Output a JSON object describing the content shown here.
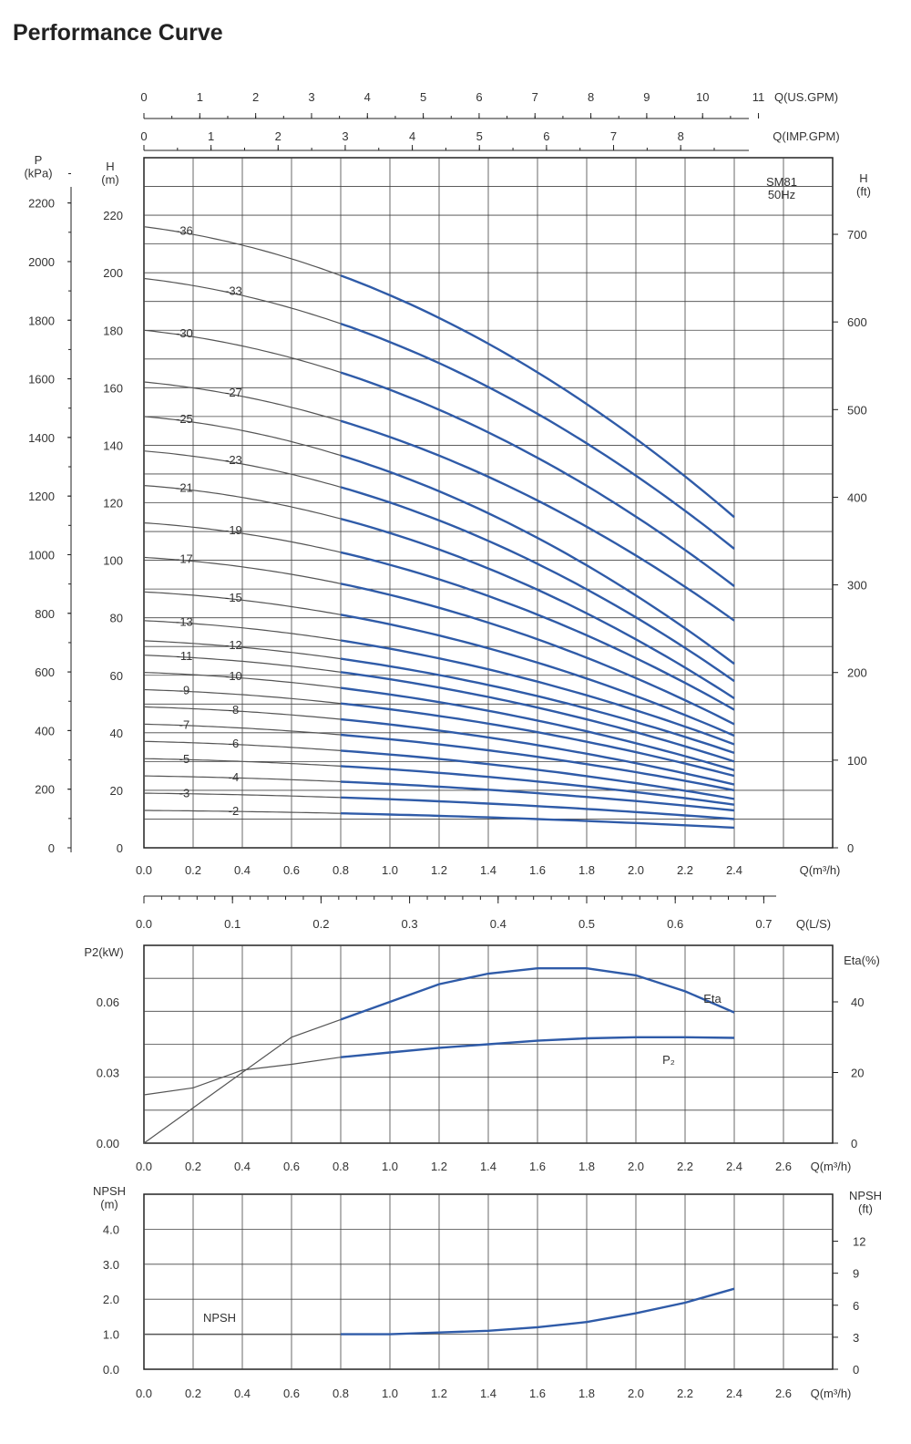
{
  "title": "Performance Curve",
  "chart_data": [
    {
      "type": "line",
      "name": "head",
      "model": "SM81",
      "frequency": "50Hz",
      "axes": {
        "x_m3h": {
          "label": "Q(m³/h)",
          "ticks": [
            "0.0",
            "0.2",
            "0.4",
            "0.6",
            "0.8",
            "1.0",
            "1.2",
            "1.4",
            "1.6",
            "1.8",
            "2.0",
            "2.2",
            "2.4"
          ],
          "range": [
            0,
            2.8
          ]
        },
        "x_usgpm": {
          "label": "Q(US.GPM)",
          "ticks": [
            "0",
            "1",
            "2",
            "3",
            "4",
            "5",
            "6",
            "7",
            "8",
            "9",
            "10",
            "11"
          ]
        },
        "x_impgpm": {
          "label": "Q(IMP.GPM)",
          "ticks": [
            "0",
            "1",
            "2",
            "3",
            "4",
            "5",
            "6",
            "7",
            "8"
          ]
        },
        "x_ls": {
          "label": "Q(L/S)",
          "ticks": [
            "0.0",
            "0.1",
            "0.2",
            "0.3",
            "0.4",
            "0.5",
            "0.6",
            "0.7"
          ]
        },
        "y_m": {
          "label": "H\n(m)",
          "ticks": [
            "0",
            "20",
            "40",
            "60",
            "80",
            "100",
            "120",
            "140",
            "160",
            "180",
            "200",
            "220"
          ],
          "range": [
            0,
            240
          ]
        },
        "y_kpa": {
          "label": "P\n(kPa)",
          "ticks": [
            "0",
            "200",
            "400",
            "600",
            "800",
            "1000",
            "1200",
            "1400",
            "1600",
            "1800",
            "2000",
            "2200"
          ]
        },
        "y_ft": {
          "label": "H\n(ft)",
          "ticks": [
            "0",
            "100",
            "200",
            "300",
            "400",
            "500",
            "600",
            "700"
          ]
        }
      },
      "operating_range_m3h": [
        0.8,
        2.4
      ],
      "series": [
        {
          "name": "-36",
          "h0": 216,
          "h24": 115
        },
        {
          "name": "-33",
          "h0": 198,
          "h24": 104
        },
        {
          "name": "-30",
          "h0": 180,
          "h24": 91
        },
        {
          "name": "-27",
          "h0": 162,
          "h24": 79
        },
        {
          "name": "-25",
          "h0": 150,
          "h24": 64
        },
        {
          "name": "-23",
          "h0": 138,
          "h24": 58
        },
        {
          "name": "-21",
          "h0": 126,
          "h24": 52
        },
        {
          "name": "-19",
          "h0": 113,
          "h24": 48
        },
        {
          "name": "-17",
          "h0": 101,
          "h24": 43
        },
        {
          "name": "-15",
          "h0": 89,
          "h24": 39
        },
        {
          "name": "-13",
          "h0": 79,
          "h24": 36
        },
        {
          "name": "-12",
          "h0": 72,
          "h24": 33
        },
        {
          "name": "-11",
          "h0": 67,
          "h24": 30
        },
        {
          "name": "-10",
          "h0": 61,
          "h24": 27
        },
        {
          "name": "-9",
          "h0": 55,
          "h24": 25
        },
        {
          "name": "-8",
          "h0": 49,
          "h24": 22
        },
        {
          "name": "-7",
          "h0": 43,
          "h24": 20
        },
        {
          "name": "-6",
          "h0": 37,
          "h24": 17
        },
        {
          "name": "-5",
          "h0": 31,
          "h24": 15
        },
        {
          "name": "-4",
          "h0": 25,
          "h24": 13
        },
        {
          "name": "-3",
          "h0": 19,
          "h24": 10
        },
        {
          "name": "-2",
          "h0": 13,
          "h24": 7
        }
      ]
    },
    {
      "type": "line",
      "name": "power-efficiency",
      "axes": {
        "x": {
          "label": "Q(m³/h)",
          "ticks": [
            "0.0",
            "0.2",
            "0.4",
            "0.6",
            "0.8",
            "1.0",
            "1.2",
            "1.4",
            "1.6",
            "1.8",
            "2.0",
            "2.2",
            "2.4",
            "2.6"
          ],
          "range": [
            0,
            2.8
          ]
        },
        "y_left": {
          "label": "P2(kW)",
          "ticks": [
            "0.00",
            "0.03",
            "0.06"
          ],
          "range": [
            0,
            0.084
          ]
        },
        "y_right": {
          "label": "Eta(%)",
          "ticks": [
            "0",
            "20",
            "40"
          ],
          "range": [
            0,
            56
          ]
        }
      },
      "series": [
        {
          "name": "Eta",
          "axis": "right",
          "x": [
            0,
            0.2,
            0.4,
            0.6,
            0.8,
            1.0,
            1.2,
            1.4,
            1.6,
            1.8,
            2.0,
            2.2,
            2.4
          ],
          "y": [
            0,
            10,
            20,
            30,
            35,
            40,
            45,
            48,
            49.5,
            49.5,
            47.5,
            43,
            37
          ]
        },
        {
          "name": "P₂",
          "axis": "left",
          "x": [
            0,
            0.2,
            0.4,
            0.6,
            0.8,
            1.0,
            1.2,
            1.4,
            1.6,
            1.8,
            2.0,
            2.2,
            2.4
          ],
          "y": [
            0.0205,
            0.0235,
            0.031,
            0.0335,
            0.0365,
            0.0385,
            0.0405,
            0.042,
            0.0435,
            0.0445,
            0.045,
            0.045,
            0.0447
          ]
        }
      ]
    },
    {
      "type": "line",
      "name": "npsh",
      "axes": {
        "x": {
          "label": "Q(m³/h)",
          "ticks": [
            "0.0",
            "0.2",
            "0.4",
            "0.6",
            "0.8",
            "1.0",
            "1.2",
            "1.4",
            "1.6",
            "1.8",
            "2.0",
            "2.2",
            "2.4",
            "2.6"
          ],
          "range": [
            0,
            2.8
          ]
        },
        "y_left": {
          "label": "NPSH\n(m)",
          "ticks": [
            "0.0",
            "1.0",
            "2.0",
            "3.0",
            "4.0"
          ],
          "range": [
            0,
            5
          ]
        },
        "y_right": {
          "label": "NPSH\n(ft)",
          "ticks": [
            "0",
            "3",
            "6",
            "9",
            "12"
          ]
        }
      },
      "series": [
        {
          "name": "NPSH",
          "x": [
            0,
            0.8,
            1.0,
            1.2,
            1.4,
            1.6,
            1.8,
            2.0,
            2.2,
            2.4
          ],
          "y": [
            1.0,
            1.0,
            1.0,
            1.05,
            1.1,
            1.2,
            1.35,
            1.6,
            1.9,
            2.3
          ]
        }
      ]
    }
  ],
  "colors": {
    "curve_blue": "#2f5ba8",
    "curve_thin": "#555555",
    "grid": "#444444",
    "axis": "#222222"
  }
}
